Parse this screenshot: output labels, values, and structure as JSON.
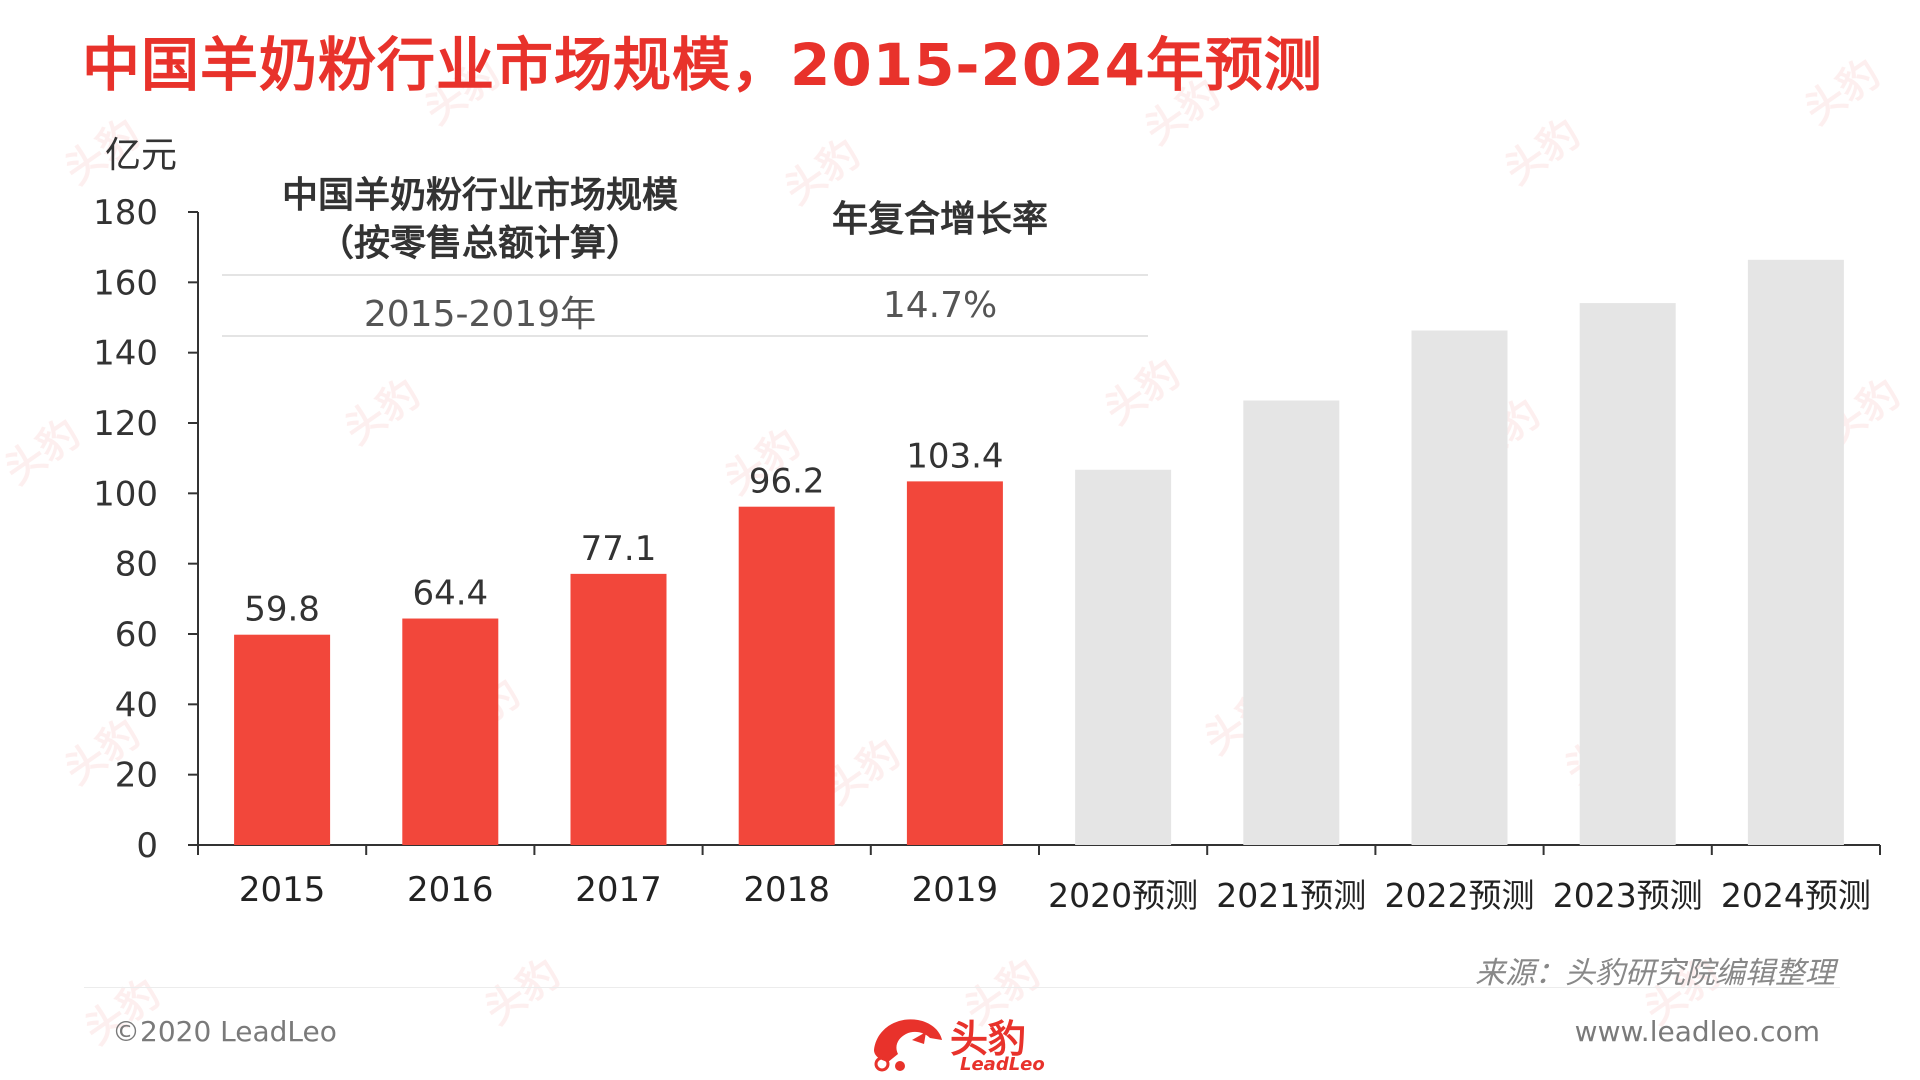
{
  "title": "中国羊奶粉行业市场规模，2015-2024年预测",
  "table": {
    "col1_header_line1": "中国羊奶粉行业市场规模",
    "col1_header_line2": "（按零售总额计算）",
    "col2_header": "年复合增长率",
    "row_period": "2015-2019年",
    "row_cagr": "14.7%"
  },
  "source": "来源：头豹研究院编辑整理",
  "footer": {
    "copyright": "©2020 LeadLeo",
    "website": "www.leadleo.com",
    "logo_cn": "头豹",
    "logo_en": "LeadLeo"
  },
  "watermark_text": "头豹",
  "colors": {
    "actual_bar": "#f2473b",
    "forecast_bar": "#e5e5e5",
    "title": "#e8322b"
  },
  "chart_data": {
    "type": "bar",
    "unit_label": "亿元",
    "categories": [
      "2015",
      "2016",
      "2017",
      "2018",
      "2019",
      "2020预测",
      "2021预测",
      "2022预测",
      "2023预测",
      "2024预测"
    ],
    "values": [
      59.8,
      64.4,
      77.1,
      96.2,
      103.4,
      106.7,
      126.4,
      146.3,
      154.1,
      166.4
    ],
    "data_labels": [
      "59.8",
      "64.4",
      "77.1",
      "96.2",
      "103.4",
      "",
      "",
      "",
      "",
      ""
    ],
    "forecast_flags": [
      false,
      false,
      false,
      false,
      false,
      true,
      true,
      true,
      true,
      true
    ],
    "ylim": [
      0,
      180
    ],
    "yticks": [
      0,
      20,
      40,
      60,
      80,
      100,
      120,
      140,
      160,
      180
    ],
    "grid": false,
    "legend": "none"
  }
}
